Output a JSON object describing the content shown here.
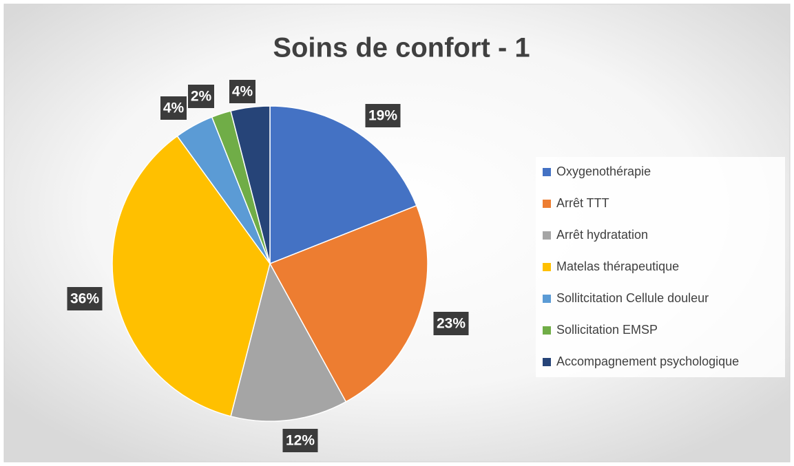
{
  "chart_data": {
    "type": "pie",
    "title": "Soins de confort - 1",
    "categories": [
      "Oxygenothérapie",
      "Arrêt TTT",
      "Arrêt hydratation",
      "Matelas thérapeutique",
      "Sollitcitation Cellule douleur",
      "Sollicitation EMSP",
      "Accompagnement psychologique"
    ],
    "values": [
      19,
      23,
      12,
      36,
      4,
      2,
      4
    ],
    "value_labels": [
      "19%",
      "23%",
      "12%",
      "36%",
      "4%",
      "2%",
      "4%"
    ],
    "colors": [
      "#4472c4",
      "#ed7d31",
      "#a5a5a5",
      "#ffc000",
      "#5b9bd5",
      "#70ad47",
      "#264478"
    ],
    "legend": "right"
  }
}
